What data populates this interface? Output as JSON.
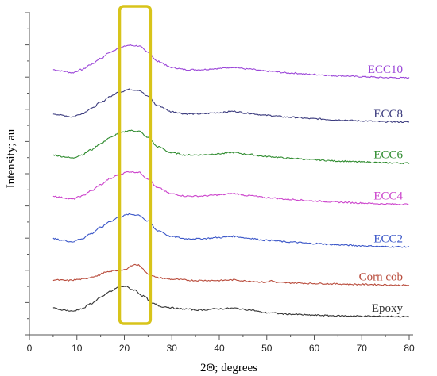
{
  "chart_data": {
    "type": "line",
    "title": "",
    "xlabel": "2Θ; degrees",
    "ylabel": "Intensity; au",
    "xlim": [
      0,
      80
    ],
    "x_ticks": [
      0,
      10,
      20,
      30,
      40,
      50,
      60,
      70,
      80
    ],
    "y_ticks_labeled": false,
    "grid": false,
    "highlight": {
      "x_range": [
        19,
        25.5
      ],
      "color": "#d8c41a"
    },
    "series": [
      {
        "name": "ECC10",
        "color": "#9b46d8",
        "offset": 7.75,
        "points": [
          [
            5,
            0.38
          ],
          [
            7,
            0.33
          ],
          [
            9,
            0.28
          ],
          [
            11,
            0.38
          ],
          [
            13,
            0.55
          ],
          [
            15,
            0.75
          ],
          [
            17,
            0.95
          ],
          [
            19,
            1.1
          ],
          [
            21,
            1.18
          ],
          [
            23,
            1.16
          ],
          [
            25,
            0.95
          ],
          [
            27,
            0.65
          ],
          [
            30,
            0.45
          ],
          [
            33,
            0.38
          ],
          [
            36,
            0.38
          ],
          [
            40,
            0.42
          ],
          [
            43,
            0.46
          ],
          [
            46,
            0.4
          ],
          [
            50,
            0.33
          ],
          [
            55,
            0.27
          ],
          [
            60,
            0.22
          ],
          [
            65,
            0.18
          ],
          [
            70,
            0.15
          ],
          [
            75,
            0.12
          ],
          [
            80,
            0.11
          ]
        ]
      },
      {
        "name": "ECC8",
        "color": "#3b3b7e",
        "offset": 6.3,
        "points": [
          [
            5,
            0.38
          ],
          [
            7,
            0.33
          ],
          [
            9,
            0.28
          ],
          [
            11,
            0.38
          ],
          [
            13,
            0.55
          ],
          [
            15,
            0.75
          ],
          [
            17,
            0.95
          ],
          [
            19,
            1.1
          ],
          [
            21,
            1.18
          ],
          [
            23,
            1.16
          ],
          [
            25,
            0.95
          ],
          [
            27,
            0.65
          ],
          [
            30,
            0.45
          ],
          [
            33,
            0.38
          ],
          [
            36,
            0.38
          ],
          [
            40,
            0.42
          ],
          [
            43,
            0.46
          ],
          [
            46,
            0.4
          ],
          [
            50,
            0.33
          ],
          [
            55,
            0.27
          ],
          [
            60,
            0.22
          ],
          [
            65,
            0.18
          ],
          [
            70,
            0.15
          ],
          [
            75,
            0.12
          ],
          [
            80,
            0.11
          ]
        ]
      },
      {
        "name": "ECC6",
        "color": "#2e8b2e",
        "offset": 4.95,
        "points": [
          [
            5,
            0.38
          ],
          [
            7,
            0.33
          ],
          [
            9,
            0.28
          ],
          [
            11,
            0.38
          ],
          [
            13,
            0.55
          ],
          [
            15,
            0.75
          ],
          [
            17,
            0.95
          ],
          [
            19,
            1.1
          ],
          [
            21,
            1.18
          ],
          [
            23,
            1.16
          ],
          [
            25,
            0.95
          ],
          [
            27,
            0.65
          ],
          [
            30,
            0.45
          ],
          [
            33,
            0.38
          ],
          [
            36,
            0.38
          ],
          [
            40,
            0.42
          ],
          [
            43,
            0.46
          ],
          [
            46,
            0.4
          ],
          [
            50,
            0.33
          ],
          [
            55,
            0.27
          ],
          [
            60,
            0.22
          ],
          [
            65,
            0.18
          ],
          [
            70,
            0.15
          ],
          [
            75,
            0.12
          ],
          [
            80,
            0.11
          ]
        ]
      },
      {
        "name": "ECC4",
        "color": "#cc44cc",
        "offset": 3.6,
        "points": [
          [
            5,
            0.38
          ],
          [
            7,
            0.33
          ],
          [
            9,
            0.28
          ],
          [
            11,
            0.38
          ],
          [
            13,
            0.55
          ],
          [
            15,
            0.75
          ],
          [
            17,
            0.95
          ],
          [
            19,
            1.1
          ],
          [
            21,
            1.18
          ],
          [
            23,
            1.16
          ],
          [
            25,
            0.95
          ],
          [
            27,
            0.65
          ],
          [
            30,
            0.45
          ],
          [
            33,
            0.38
          ],
          [
            36,
            0.38
          ],
          [
            40,
            0.42
          ],
          [
            43,
            0.46
          ],
          [
            46,
            0.4
          ],
          [
            50,
            0.33
          ],
          [
            55,
            0.27
          ],
          [
            60,
            0.22
          ],
          [
            65,
            0.18
          ],
          [
            70,
            0.15
          ],
          [
            75,
            0.12
          ],
          [
            80,
            0.11
          ]
        ]
      },
      {
        "name": "ECC2",
        "color": "#3a56c8",
        "offset": 2.2,
        "points": [
          [
            5,
            0.38
          ],
          [
            7,
            0.33
          ],
          [
            9,
            0.28
          ],
          [
            11,
            0.38
          ],
          [
            13,
            0.55
          ],
          [
            15,
            0.75
          ],
          [
            17,
            0.95
          ],
          [
            19,
            1.1
          ],
          [
            21,
            1.18
          ],
          [
            23,
            1.16
          ],
          [
            25,
            0.95
          ],
          [
            27,
            0.65
          ],
          [
            30,
            0.45
          ],
          [
            33,
            0.38
          ],
          [
            36,
            0.38
          ],
          [
            40,
            0.42
          ],
          [
            43,
            0.46
          ],
          [
            46,
            0.4
          ],
          [
            50,
            0.33
          ],
          [
            55,
            0.27
          ],
          [
            60,
            0.22
          ],
          [
            65,
            0.18
          ],
          [
            70,
            0.15
          ],
          [
            75,
            0.12
          ],
          [
            80,
            0.11
          ]
        ]
      },
      {
        "name": "Corn cob",
        "color": "#b84a3a",
        "offset": 1.05,
        "points": [
          [
            5,
            0.18
          ],
          [
            8,
            0.16
          ],
          [
            11,
            0.2
          ],
          [
            14,
            0.3
          ],
          [
            16,
            0.42
          ],
          [
            18,
            0.48
          ],
          [
            20,
            0.5
          ],
          [
            22,
            0.68
          ],
          [
            23,
            0.66
          ],
          [
            25,
            0.38
          ],
          [
            27,
            0.25
          ],
          [
            30,
            0.2
          ],
          [
            35,
            0.16
          ],
          [
            40,
            0.16
          ],
          [
            43,
            0.18
          ],
          [
            46,
            0.14
          ],
          [
            50,
            0.1
          ],
          [
            51,
            0.16
          ],
          [
            52,
            0.09
          ],
          [
            55,
            0.08
          ],
          [
            60,
            0.06
          ],
          [
            70,
            0.03
          ],
          [
            80,
            0.0
          ]
        ]
      },
      {
        "name": "Epoxy",
        "color": "#333333",
        "offset": 0.0,
        "points": [
          [
            5,
            0.3
          ],
          [
            7,
            0.25
          ],
          [
            9,
            0.2
          ],
          [
            11,
            0.28
          ],
          [
            13,
            0.45
          ],
          [
            15,
            0.65
          ],
          [
            17,
            0.85
          ],
          [
            19,
            1.0
          ],
          [
            20,
            1.02
          ],
          [
            22,
            0.9
          ],
          [
            24,
            0.7
          ],
          [
            26,
            0.45
          ],
          [
            28,
            0.35
          ],
          [
            32,
            0.28
          ],
          [
            36,
            0.24
          ],
          [
            40,
            0.28
          ],
          [
            43,
            0.3
          ],
          [
            46,
            0.25
          ],
          [
            50,
            0.15
          ],
          [
            55,
            0.1
          ],
          [
            60,
            0.07
          ],
          [
            65,
            0.05
          ],
          [
            70,
            0.04
          ],
          [
            75,
            0.03
          ],
          [
            80,
            0.02
          ]
        ]
      }
    ]
  }
}
